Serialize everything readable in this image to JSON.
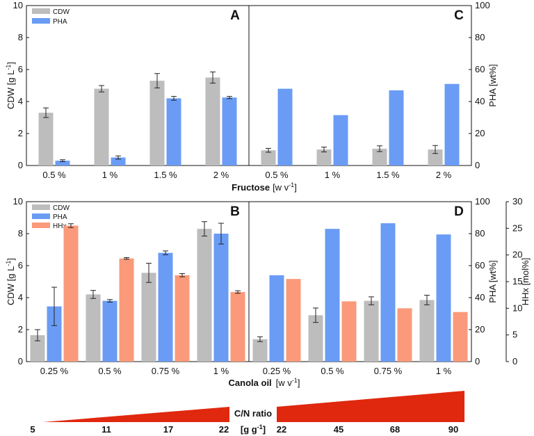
{
  "colors": {
    "cdw": "#bdbdbd",
    "pha": "#6a9cf5",
    "hhx": "#fa9a7a",
    "ramp": "#e0280e",
    "axis": "#111111"
  },
  "chart_data": [
    {
      "panel": "A",
      "type": "bar",
      "categories": [
        "0.5 %",
        "1 %",
        "1.5 %",
        "2 %"
      ],
      "series": [
        {
          "name": "CDW",
          "values": [
            3.3,
            4.8,
            5.3,
            5.5
          ],
          "errors": [
            0.3,
            0.2,
            0.45,
            0.35
          ]
        },
        {
          "name": "PHA",
          "values": [
            0.3,
            0.5,
            4.2,
            4.25
          ],
          "errors": [
            0.06,
            0.1,
            0.12,
            0.07
          ]
        }
      ],
      "ylabel": "CDW [g L-1]",
      "ylim": [
        0,
        10
      ],
      "yticks": [
        "0",
        "2",
        "4",
        "6",
        "8",
        "10"
      ],
      "legend": [
        "CDW",
        "PHA"
      ]
    },
    {
      "panel": "C",
      "type": "bar",
      "categories": [
        "0.5 %",
        "1 %",
        "1.5 %",
        "2 %"
      ],
      "series": [
        {
          "name": "CDW",
          "axis": "left",
          "values": [
            0.95,
            1.0,
            1.05,
            1.0
          ],
          "errors": [
            0.12,
            0.15,
            0.18,
            0.25
          ]
        },
        {
          "name": "PHA",
          "axis": "right",
          "values": [
            48,
            31.5,
            47,
            51
          ],
          "errors": [
            0,
            0,
            0,
            0
          ]
        }
      ],
      "y2label": "PHA [wt%]",
      "y2lim": [
        0,
        100
      ],
      "y2ticks": [
        "0",
        "20",
        "40",
        "60",
        "80",
        "100"
      ]
    },
    {
      "panel": "B",
      "type": "bar",
      "categories": [
        "0.25 %",
        "0.5 %",
        "0.75 %",
        "1 %"
      ],
      "series": [
        {
          "name": "CDW",
          "values": [
            1.65,
            4.2,
            5.55,
            8.3
          ],
          "errors": [
            0.35,
            0.25,
            0.6,
            0.45
          ]
        },
        {
          "name": "PHA",
          "values": [
            3.45,
            3.8,
            6.8,
            8.0
          ],
          "errors": [
            1.2,
            0.08,
            0.12,
            0.65
          ]
        },
        {
          "name": "HHx",
          "values": [
            8.5,
            6.45,
            5.4,
            4.35
          ],
          "errors": [
            0.12,
            0.05,
            0.1,
            0.08
          ]
        }
      ],
      "ylabel": "CDW [g L-1]",
      "ylim": [
        0,
        10
      ],
      "yticks": [
        "0",
        "2",
        "4",
        "6",
        "8",
        "10"
      ],
      "legend": [
        "CDW",
        "PHA",
        "HHx"
      ]
    },
    {
      "panel": "D",
      "type": "bar",
      "categories": [
        "0.25 %",
        "0.5 %",
        "0.75 %",
        "1 %"
      ],
      "series": [
        {
          "name": "CDW",
          "axis": "left",
          "values": [
            1.4,
            2.9,
            3.8,
            3.85
          ],
          "errors": [
            0.15,
            0.45,
            0.25,
            0.3
          ]
        },
        {
          "name": "PHA",
          "axis": "right",
          "values": [
            54,
            83,
            86.5,
            79.5
          ],
          "errors": [
            0,
            0,
            0,
            0
          ]
        },
        {
          "name": "HHx",
          "axis": "right2",
          "values": [
            15.5,
            11.3,
            10.0,
            9.3
          ],
          "errors": [
            0,
            0,
            0,
            0
          ]
        }
      ],
      "y2label": "PHA [wt%]",
      "y2lim": [
        0,
        100
      ],
      "y2ticks": [
        "0",
        "20",
        "40",
        "60",
        "80",
        "100"
      ],
      "y3label": "HHx [mol%]",
      "y3lim": [
        0,
        30
      ],
      "y3ticks": [
        "0",
        "5",
        "10",
        "15",
        "20",
        "25",
        "30"
      ]
    }
  ],
  "labels": {
    "y_left": "CDW [g L",
    "y_left_sup": "-1",
    "y_left_close": "]",
    "y_right": "PHA [wt%]",
    "y_hhx": "HHx [mol%]",
    "x_top": "Fructose",
    "x_top_unit": "[w v",
    "x_top_sup": "-1",
    "x_top_close": "]",
    "x_bottom": "Canola oil",
    "x_bottom_unit": "[w v",
    "x_bottom_sup": "-1",
    "x_bottom_close": "]"
  },
  "cn_ratio": {
    "title": "C/N ratio",
    "unit": "[g g",
    "unit_sup": "-1",
    "unit_close": "]",
    "left_values": [
      "5",
      "11",
      "17",
      "22"
    ],
    "right_values": [
      "22",
      "45",
      "68",
      "90"
    ]
  }
}
